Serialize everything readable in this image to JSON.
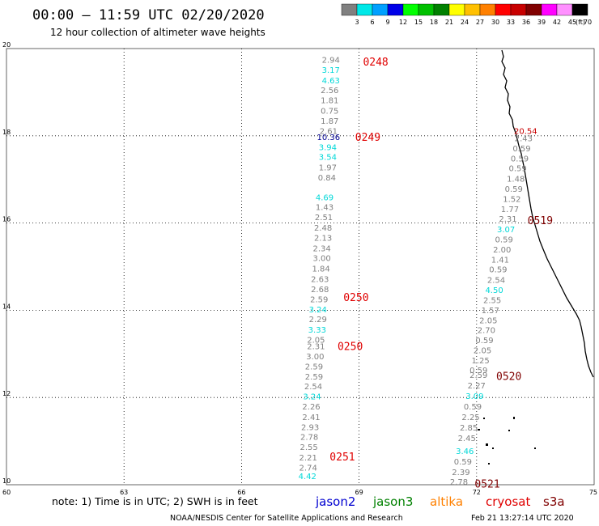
{
  "title": "00:00 – 11:59 UTC 02/20/2020",
  "subtitle": "12 hour collection of altimeter wave heights",
  "color_scale": {
    "unit_label": "(ft)",
    "labels": [
      "3",
      "6",
      "9",
      "12",
      "15",
      "18",
      "21",
      "24",
      "27",
      "30",
      "33",
      "36",
      "39",
      "42",
      "45",
      "70"
    ],
    "colors": [
      "#808080",
      "#00e8e8",
      "#00a0ff",
      "#0000e8",
      "#00ff00",
      "#00c000",
      "#008000",
      "#ffff00",
      "#ffc000",
      "#ff8000",
      "#ff0000",
      "#c80000",
      "#800000",
      "#ff00ff",
      "#ff90ff",
      "#000000"
    ]
  },
  "map": {
    "lon_ticks": [
      "60",
      "63",
      "66",
      "69",
      "72",
      "75"
    ],
    "lat_ticks": [
      "10",
      "12",
      "14",
      "16",
      "18",
      "20"
    ],
    "lon_range": [
      60,
      75
    ],
    "lat_range": [
      10,
      20
    ],
    "grid": "dotted"
  },
  "passes": [
    {
      "label": "0248",
      "color": "#e00000",
      "lon": 69.1,
      "lat": 19.7
    },
    {
      "label": "0249",
      "color": "#e00000",
      "lon": 68.9,
      "lat": 17.98
    },
    {
      "label": "0250",
      "color": "#e00000",
      "lon": 68.6,
      "lat": 14.3
    },
    {
      "label": "0250",
      "color": "#e00000",
      "lon": 68.45,
      "lat": 13.18
    },
    {
      "label": "0251",
      "color": "#e00000",
      "lon": 68.25,
      "lat": 10.65
    },
    {
      "label": "0519",
      "color": "#800000",
      "lon": 73.3,
      "lat": 16.07
    },
    {
      "label": "0520",
      "color": "#800000",
      "lon": 72.5,
      "lat": 12.5
    },
    {
      "label": "0521",
      "color": "#800000",
      "lon": 71.95,
      "lat": 10.03
    }
  ],
  "observations": [
    {
      "v": "2.94",
      "lon": 68.28,
      "lat": 19.75,
      "c": "#808080"
    },
    {
      "v": "3.17",
      "lon": 68.28,
      "lat": 19.52,
      "c": "#00d8d8"
    },
    {
      "v": "4.63",
      "lon": 68.28,
      "lat": 19.28,
      "c": "#00d8d8"
    },
    {
      "v": "2.56",
      "lon": 68.25,
      "lat": 19.05,
      "c": "#808080"
    },
    {
      "v": "1.81",
      "lon": 68.25,
      "lat": 18.82,
      "c": "#808080"
    },
    {
      "v": "0.75",
      "lon": 68.25,
      "lat": 18.58,
      "c": "#808080"
    },
    {
      "v": "1.87",
      "lon": 68.25,
      "lat": 18.35,
      "c": "#808080"
    },
    {
      "v": "2.61",
      "lon": 68.22,
      "lat": 18.12,
      "c": "#808080"
    },
    {
      "v": "10.36",
      "lon": 68.22,
      "lat": 17.98,
      "c": "#000090"
    },
    {
      "v": "3.94",
      "lon": 68.2,
      "lat": 17.75,
      "c": "#00d8d8"
    },
    {
      "v": "3.54",
      "lon": 68.2,
      "lat": 17.52,
      "c": "#00d8d8"
    },
    {
      "v": "1.97",
      "lon": 68.2,
      "lat": 17.28,
      "c": "#808080"
    },
    {
      "v": "0.84",
      "lon": 68.18,
      "lat": 17.05,
      "c": "#808080"
    },
    {
      "v": "4.69",
      "lon": 68.12,
      "lat": 16.6,
      "c": "#00d8d8"
    },
    {
      "v": "1.43",
      "lon": 68.12,
      "lat": 16.37,
      "c": "#808080"
    },
    {
      "v": "2.51",
      "lon": 68.1,
      "lat": 16.14,
      "c": "#808080"
    },
    {
      "v": "2.48",
      "lon": 68.08,
      "lat": 15.9,
      "c": "#808080"
    },
    {
      "v": "2.13",
      "lon": 68.08,
      "lat": 15.67,
      "c": "#808080"
    },
    {
      "v": "2.34",
      "lon": 68.05,
      "lat": 15.43,
      "c": "#808080"
    },
    {
      "v": "3.00",
      "lon": 68.05,
      "lat": 15.2,
      "c": "#808080"
    },
    {
      "v": "1.84",
      "lon": 68.03,
      "lat": 14.96,
      "c": "#808080"
    },
    {
      "v": "2.63",
      "lon": 68.0,
      "lat": 14.72,
      "c": "#808080"
    },
    {
      "v": "2.68",
      "lon": 68.0,
      "lat": 14.49,
      "c": "#808080"
    },
    {
      "v": "2.59",
      "lon": 67.98,
      "lat": 14.26,
      "c": "#808080"
    },
    {
      "v": "3.24",
      "lon": 67.95,
      "lat": 14.03,
      "c": "#00d8d8"
    },
    {
      "v": "2.29",
      "lon": 67.95,
      "lat": 13.8,
      "c": "#808080"
    },
    {
      "v": "3.33",
      "lon": 67.93,
      "lat": 13.56,
      "c": "#00d8d8"
    },
    {
      "v": "2.05",
      "lon": 67.9,
      "lat": 13.33,
      "c": "#808080"
    },
    {
      "v": "2.31",
      "lon": 67.9,
      "lat": 13.18,
      "c": "#808080"
    },
    {
      "v": "3.00",
      "lon": 67.88,
      "lat": 12.95,
      "c": "#808080"
    },
    {
      "v": "2.59",
      "lon": 67.85,
      "lat": 12.72,
      "c": "#808080"
    },
    {
      "v": "2.59",
      "lon": 67.85,
      "lat": 12.49,
      "c": "#808080"
    },
    {
      "v": "2.54",
      "lon": 67.83,
      "lat": 12.26,
      "c": "#808080"
    },
    {
      "v": "3.24",
      "lon": 67.8,
      "lat": 12.03,
      "c": "#00d8d8"
    },
    {
      "v": "2.26",
      "lon": 67.78,
      "lat": 11.8,
      "c": "#808080"
    },
    {
      "v": "2.41",
      "lon": 67.78,
      "lat": 11.56,
      "c": "#808080"
    },
    {
      "v": "2.93",
      "lon": 67.75,
      "lat": 11.33,
      "c": "#808080"
    },
    {
      "v": "2.78",
      "lon": 67.73,
      "lat": 11.1,
      "c": "#808080"
    },
    {
      "v": "2.55",
      "lon": 67.72,
      "lat": 10.87,
      "c": "#808080"
    },
    {
      "v": "2.21",
      "lon": 67.7,
      "lat": 10.63,
      "c": "#808080"
    },
    {
      "v": "2.74",
      "lon": 67.7,
      "lat": 10.4,
      "c": "#808080"
    },
    {
      "v": "4.42",
      "lon": 67.68,
      "lat": 10.2,
      "c": "#00d8d8"
    },
    {
      "v": "20.54",
      "lon": 73.25,
      "lat": 18.12,
      "c": "#c80000"
    },
    {
      "v": "2.43",
      "lon": 73.2,
      "lat": 17.95,
      "c": "#808080"
    },
    {
      "v": "0.59",
      "lon": 73.15,
      "lat": 17.72,
      "c": "#808080"
    },
    {
      "v": "0.59",
      "lon": 73.1,
      "lat": 17.49,
      "c": "#808080"
    },
    {
      "v": "0.59",
      "lon": 73.05,
      "lat": 17.26,
      "c": "#808080"
    },
    {
      "v": "1.48",
      "lon": 73.0,
      "lat": 17.02,
      "c": "#808080"
    },
    {
      "v": "0.59",
      "lon": 72.95,
      "lat": 16.79,
      "c": "#808080"
    },
    {
      "v": "1.52",
      "lon": 72.9,
      "lat": 16.56,
      "c": "#808080"
    },
    {
      "v": "1.77",
      "lon": 72.85,
      "lat": 16.33,
      "c": "#808080"
    },
    {
      "v": "2.31",
      "lon": 72.8,
      "lat": 16.1,
      "c": "#808080"
    },
    {
      "v": "3.07",
      "lon": 72.75,
      "lat": 15.86,
      "c": "#00d8d8"
    },
    {
      "v": "0.59",
      "lon": 72.7,
      "lat": 15.63,
      "c": "#808080"
    },
    {
      "v": "2.00",
      "lon": 72.65,
      "lat": 15.4,
      "c": "#808080"
    },
    {
      "v": "1.41",
      "lon": 72.6,
      "lat": 15.17,
      "c": "#808080"
    },
    {
      "v": "0.59",
      "lon": 72.55,
      "lat": 14.94,
      "c": "#808080"
    },
    {
      "v": "2.54",
      "lon": 72.5,
      "lat": 14.7,
      "c": "#808080"
    },
    {
      "v": "4.50",
      "lon": 72.45,
      "lat": 14.47,
      "c": "#00d8d8"
    },
    {
      "v": "2.55",
      "lon": 72.4,
      "lat": 14.24,
      "c": "#808080"
    },
    {
      "v": "1.57",
      "lon": 72.35,
      "lat": 14.01,
      "c": "#808080"
    },
    {
      "v": "2.05",
      "lon": 72.3,
      "lat": 13.78,
      "c": "#808080"
    },
    {
      "v": "2.70",
      "lon": 72.25,
      "lat": 13.55,
      "c": "#808080"
    },
    {
      "v": "0.59",
      "lon": 72.2,
      "lat": 13.32,
      "c": "#808080"
    },
    {
      "v": "2.05",
      "lon": 72.15,
      "lat": 13.09,
      "c": "#808080"
    },
    {
      "v": "1.25",
      "lon": 72.1,
      "lat": 12.86,
      "c": "#808080"
    },
    {
      "v": "0.59",
      "lon": 72.05,
      "lat": 12.63,
      "c": "#808080"
    },
    {
      "v": "2.59",
      "lon": 72.05,
      "lat": 12.52,
      "c": "#808080"
    },
    {
      "v": "2.27",
      "lon": 72.0,
      "lat": 12.28,
      "c": "#808080"
    },
    {
      "v": "3.09",
      "lon": 71.95,
      "lat": 12.04,
      "c": "#00d8d8"
    },
    {
      "v": "0.59",
      "lon": 71.9,
      "lat": 11.8,
      "c": "#808080"
    },
    {
      "v": "2.25",
      "lon": 71.85,
      "lat": 11.56,
      "c": "#808080"
    },
    {
      "v": "2.85",
      "lon": 71.8,
      "lat": 11.32,
      "c": "#808080"
    },
    {
      "v": "2.45",
      "lon": 71.75,
      "lat": 11.08,
      "c": "#808080"
    },
    {
      "v": "3.46",
      "lon": 71.7,
      "lat": 10.78,
      "c": "#00d8d8"
    },
    {
      "v": "0.59",
      "lon": 71.65,
      "lat": 10.54,
      "c": "#808080"
    },
    {
      "v": "2.39",
      "lon": 71.6,
      "lat": 10.3,
      "c": "#808080"
    },
    {
      "v": "2.78",
      "lon": 71.55,
      "lat": 10.07,
      "c": "#808080"
    }
  ],
  "note": "note:  1) Time is in UTC;  2) SWH is in feet",
  "satellites": [
    {
      "name": "jason2",
      "color": "#0000d0"
    },
    {
      "name": "jason3",
      "color": "#008000"
    },
    {
      "name": "altika",
      "color": "#ff8000"
    },
    {
      "name": "cryosat",
      "color": "#e00000"
    },
    {
      "name": "s3a",
      "color": "#800000"
    }
  ],
  "credit_left": "NOAA/NESDIS Center for Satellite Applications and Research",
  "credit_right": "Feb 21 13:27:14 UTC 2020"
}
